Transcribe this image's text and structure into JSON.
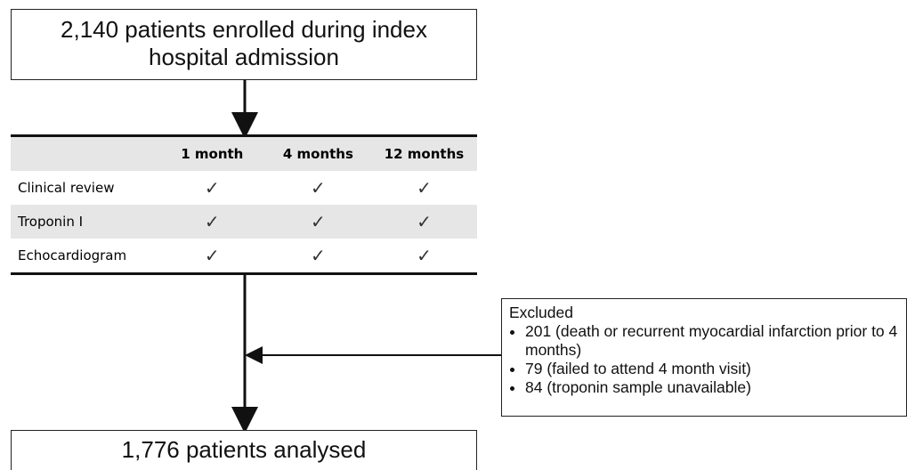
{
  "top_box": {
    "text": "2,140 patients enrolled during index hospital admission"
  },
  "table": {
    "header": [
      "1 month",
      "4 months",
      "12 months"
    ],
    "rows": [
      {
        "label": "Clinical review",
        "cells": [
          "✓",
          "✓",
          "✓"
        ]
      },
      {
        "label": "Troponin I",
        "cells": [
          "✓",
          "✓",
          "✓"
        ]
      },
      {
        "label": "Echocardiogram",
        "cells": [
          "✓",
          "✓",
          "✓"
        ]
      }
    ]
  },
  "excluded": {
    "title": "Excluded",
    "items": [
      "201 (death or recurrent myocardial infarction prior to 4 months)",
      "79 (failed to attend 4 month visit)",
      "84 (troponin sample unavailable)"
    ]
  },
  "bottom_box": {
    "text": "1,776 patients analysed"
  }
}
